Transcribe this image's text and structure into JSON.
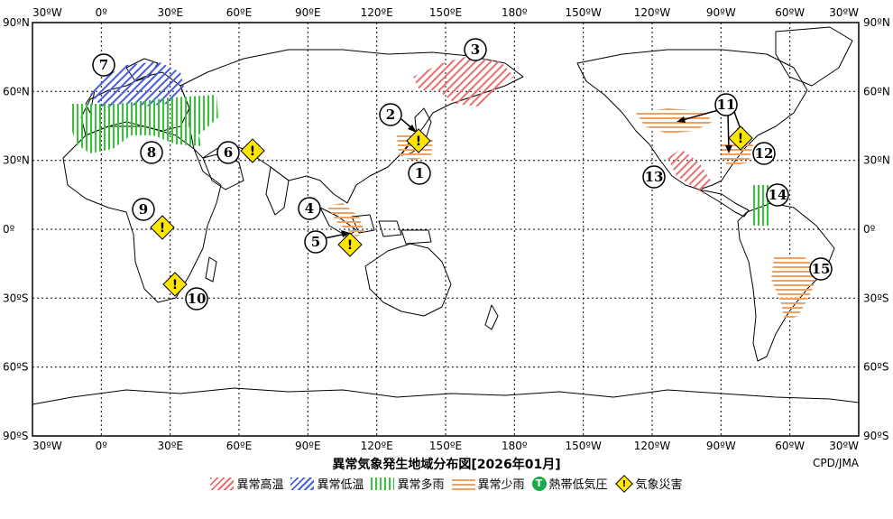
{
  "map": {
    "top_lon_labels": [
      "30ºW",
      "0º",
      "30ºE",
      "60ºE",
      "90ºE",
      "120ºE",
      "150ºE",
      "180º",
      "150ºW",
      "120ºW",
      "90ºW",
      "60ºW",
      "30ºW"
    ],
    "bottom_lon_labels": [
      "30ºW",
      "0º",
      "30ºE",
      "60ºE",
      "90ºE",
      "120ºE",
      "150ºE",
      "180º",
      "150ºW",
      "120ºW",
      "90ºW",
      "60ºW",
      "30ºW"
    ],
    "lat_labels": [
      "90ºN",
      "60ºN",
      "30ºN",
      "0º",
      "30ºS",
      "60ºS",
      "90ºS"
    ],
    "colors": {
      "hot": "#e87070",
      "cold": "#4a60d8",
      "wet": "#38c438",
      "dry": "#f0a060",
      "disaster": "#ffe600"
    },
    "region_numbers": [
      "1",
      "2",
      "3",
      "4",
      "5",
      "6",
      "7",
      "8",
      "9",
      "10",
      "11",
      "12",
      "13",
      "14",
      "15"
    ],
    "disaster_symbol": "!"
  },
  "title": "異常気象発生地域分布図[2026年01月]",
  "credit": "CPD/JMA",
  "legend": [
    {
      "id": "hot",
      "label": "異常高温"
    },
    {
      "id": "cold",
      "label": "異常低温"
    },
    {
      "id": "wet",
      "label": "異常多雨"
    },
    {
      "id": "dry",
      "label": "異常少雨"
    },
    {
      "id": "tc",
      "label": "熱帯低気圧",
      "symbol": "T"
    },
    {
      "id": "disaster",
      "label": "気象災害",
      "symbol": "!"
    }
  ]
}
